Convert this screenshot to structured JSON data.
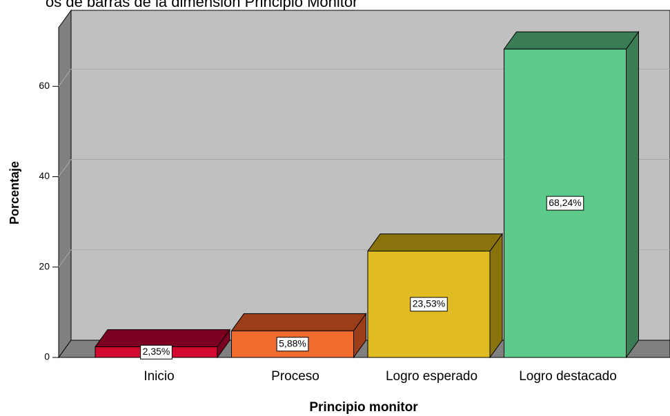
{
  "chart_data": {
    "type": "bar3d",
    "title": "os de barras de la dimensión Principio Monitor",
    "x_label": "Principio monitor",
    "y_label": "Porcentaje",
    "categories": [
      "Inicio",
      "Proceso",
      "Logro esperado",
      "Logro destacado"
    ],
    "values": [
      2.35,
      5.88,
      23.53,
      68.24
    ],
    "value_labels": [
      "2,35%",
      "5,88%",
      "23,53%",
      "68,24%"
    ],
    "colors": [
      "#d20a30",
      "#f26b2e",
      "#e0bb21",
      "#5dc98b"
    ],
    "top_colors": [
      "#7c0020",
      "#9a3d18",
      "#8a730d",
      "#3a7d54"
    ],
    "ylim": [
      0,
      73
    ],
    "yticks": [
      0,
      20,
      40,
      60
    ],
    "grid": true
  }
}
